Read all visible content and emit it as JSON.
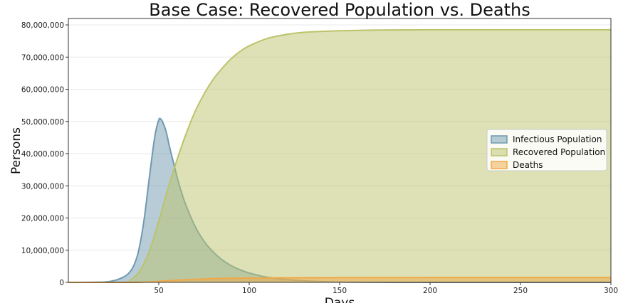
{
  "chart_data": {
    "type": "area",
    "title": "Base Case: Recovered Population vs. Deaths",
    "xlabel": "Days",
    "ylabel": "Persons",
    "xlim": [
      0,
      300
    ],
    "ylim": [
      0,
      82000000
    ],
    "x_ticks": [
      50,
      100,
      150,
      200,
      250,
      300
    ],
    "x_tick_labels": [
      "50",
      "100",
      "150",
      "200",
      "250",
      "300"
    ],
    "y_ticks": [
      0,
      10000000,
      20000000,
      30000000,
      40000000,
      50000000,
      60000000,
      70000000,
      80000000
    ],
    "y_tick_labels": [
      "0",
      "10,000,000",
      "20,000,000",
      "30,000,000",
      "40,000,000",
      "50,000,000",
      "60,000,000",
      "70,000,000",
      "80,000,000"
    ],
    "grid": "horizontal",
    "legend_position": "center-right",
    "series": [
      {
        "name": "Infectious Population",
        "color": "#6f9aaf",
        "x": [
          0,
          20,
          30,
          35,
          38,
          40,
          42,
          44,
          46,
          48,
          50,
          51,
          52,
          54,
          56,
          58,
          60,
          62,
          65,
          70,
          75,
          80,
          85,
          90,
          95,
          100,
          105,
          110,
          120,
          130,
          140,
          150,
          160,
          180,
          200,
          250,
          300
        ],
        "y": [
          0,
          100000,
          1500000,
          4000000,
          8000000,
          13000000,
          20000000,
          29000000,
          38000000,
          46000000,
          50500000,
          50800000,
          50000000,
          47000000,
          42000000,
          37500000,
          33000000,
          29000000,
          24000000,
          17500000,
          12800000,
          9500000,
          7000000,
          5200000,
          3900000,
          2900000,
          2200000,
          1600000,
          900000,
          500000,
          250000,
          100000,
          50000,
          10000,
          0,
          0,
          0
        ]
      },
      {
        "name": "Recovered Population",
        "color": "#bcc36b",
        "x": [
          0,
          30,
          35,
          40,
          45,
          50,
          55,
          60,
          65,
          70,
          75,
          80,
          85,
          90,
          95,
          100,
          110,
          120,
          130,
          140,
          150,
          170,
          200,
          250,
          300
        ],
        "y": [
          0,
          0,
          1000000,
          4000000,
          10000000,
          19000000,
          29000000,
          38000000,
          46000000,
          53000000,
          58500000,
          63000000,
          66500000,
          69500000,
          71800000,
          73500000,
          75800000,
          77000000,
          77700000,
          78000000,
          78200000,
          78400000,
          78500000,
          78500000,
          78500000
        ]
      },
      {
        "name": "Deaths",
        "color": "#f0a848",
        "x": [
          0,
          35,
          40,
          45,
          50,
          55,
          60,
          70,
          80,
          90,
          100,
          120,
          150,
          200,
          300
        ],
        "y": [
          0,
          0,
          50000,
          150000,
          300000,
          500000,
          700000,
          950000,
          1150000,
          1280000,
          1350000,
          1420000,
          1460000,
          1480000,
          1500000
        ]
      }
    ]
  }
}
